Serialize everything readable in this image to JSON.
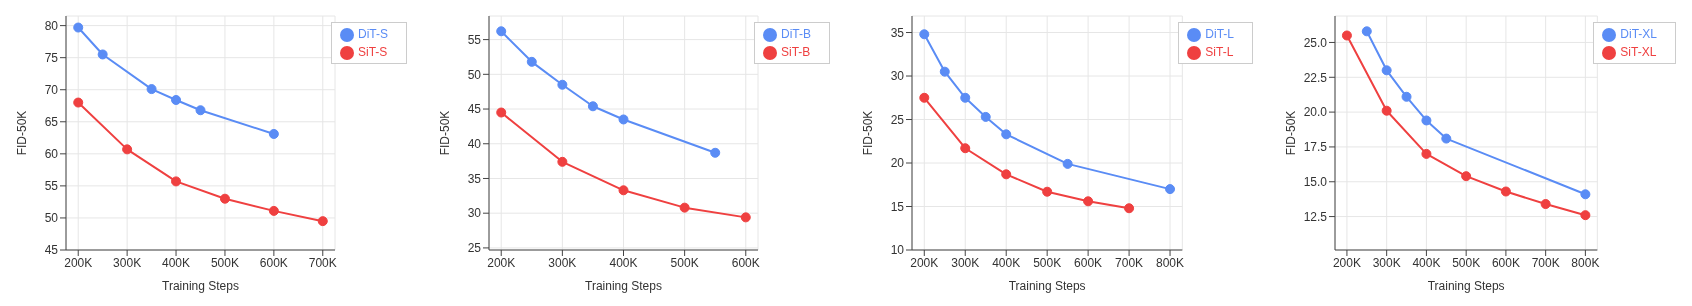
{
  "chart_data": [
    {
      "type": "line",
      "xlabel": "Training Steps",
      "ylabel": "FID-50K",
      "xlim": [
        175000,
        725000
      ],
      "ylim": [
        45,
        81.5
      ],
      "xticks": [
        {
          "value": 200000,
          "label": "200K"
        },
        {
          "value": 300000,
          "label": "300K"
        },
        {
          "value": 400000,
          "label": "400K"
        },
        {
          "value": 500000,
          "label": "500K"
        },
        {
          "value": 600000,
          "label": "600K"
        },
        {
          "value": 700000,
          "label": "700K"
        }
      ],
      "yticks": [
        45,
        50,
        55,
        60,
        65,
        70,
        75,
        80
      ],
      "grid": true,
      "legend": "top right",
      "marker": "circle",
      "line_style": "solid",
      "series": [
        {
          "name": "SiT-S",
          "color": "#ef4040",
          "x": [
            200000,
            300000,
            400000,
            500000,
            600000,
            700000
          ],
          "values": [
            68.0,
            60.7,
            55.7,
            53.0,
            51.1,
            49.5
          ]
        },
        {
          "name": "DiT-S",
          "color": "#5a8cf5",
          "x": [
            200000,
            250000,
            350000,
            400000,
            450000,
            600000
          ],
          "values": [
            79.7,
            75.5,
            70.1,
            68.4,
            66.8,
            63.1
          ]
        }
      ]
    },
    {
      "type": "line",
      "xlabel": "Training Steps",
      "ylabel": "FID-50K",
      "xlim": [
        180000,
        620000
      ],
      "ylim": [
        24.7,
        58.4
      ],
      "xticks": [
        {
          "value": 200000,
          "label": "200K"
        },
        {
          "value": 300000,
          "label": "300K"
        },
        {
          "value": 400000,
          "label": "400K"
        },
        {
          "value": 500000,
          "label": "500K"
        },
        {
          "value": 600000,
          "label": "600K"
        }
      ],
      "yticks": [
        25,
        30,
        35,
        40,
        45,
        50,
        55
      ],
      "grid": true,
      "legend": "top right",
      "marker": "circle",
      "line_style": "solid",
      "series": [
        {
          "name": "SiT-B",
          "color": "#ef4040",
          "x": [
            200000,
            300000,
            400000,
            500000,
            600000
          ],
          "values": [
            44.5,
            37.4,
            33.3,
            30.8,
            29.4
          ]
        },
        {
          "name": "DiT-B",
          "color": "#5a8cf5",
          "x": [
            200000,
            250000,
            300000,
            350000,
            400000,
            550000
          ],
          "values": [
            56.2,
            51.8,
            48.5,
            45.4,
            43.5,
            38.7
          ]
        }
      ]
    },
    {
      "type": "line",
      "xlabel": "Training Steps",
      "ylabel": "FID-50K",
      "xlim": [
        170000,
        830000
      ],
      "ylim": [
        10,
        36.9
      ],
      "xticks": [
        {
          "value": 200000,
          "label": "200K"
        },
        {
          "value": 300000,
          "label": "300K"
        },
        {
          "value": 400000,
          "label": "400K"
        },
        {
          "value": 500000,
          "label": "500K"
        },
        {
          "value": 600000,
          "label": "600K"
        },
        {
          "value": 700000,
          "label": "700K"
        },
        {
          "value": 800000,
          "label": "800K"
        }
      ],
      "yticks": [
        10,
        15,
        20,
        25,
        30,
        35
      ],
      "grid": true,
      "legend": "top right",
      "marker": "circle",
      "line_style": "solid",
      "series": [
        {
          "name": "SiT-L",
          "color": "#ef4040",
          "x": [
            200000,
            300000,
            400000,
            500000,
            600000,
            700000
          ],
          "values": [
            27.5,
            21.7,
            18.7,
            16.7,
            15.6,
            14.8
          ]
        },
        {
          "name": "DiT-L",
          "color": "#5a8cf5",
          "x": [
            200000,
            250000,
            300000,
            350000,
            400000,
            550000,
            800000
          ],
          "values": [
            34.8,
            30.5,
            27.5,
            25.3,
            23.3,
            19.9,
            17.0
          ]
        }
      ]
    },
    {
      "type": "line",
      "xlabel": "Training Steps",
      "ylabel": "FID-50K",
      "xlim": [
        170000,
        830000
      ],
      "ylim": [
        10.1,
        26.9
      ],
      "xticks": [
        {
          "value": 200000,
          "label": "200K"
        },
        {
          "value": 300000,
          "label": "300K"
        },
        {
          "value": 400000,
          "label": "400K"
        },
        {
          "value": 500000,
          "label": "500K"
        },
        {
          "value": 600000,
          "label": "600K"
        },
        {
          "value": 700000,
          "label": "700K"
        },
        {
          "value": 800000,
          "label": "800K"
        }
      ],
      "yticks": [
        {
          "value": 12.5,
          "label": "12.5"
        },
        {
          "value": 15,
          "label": "15.0"
        },
        {
          "value": 17.5,
          "label": "17.5"
        },
        {
          "value": 20,
          "label": "20.0"
        },
        {
          "value": 22.5,
          "label": "22.5"
        },
        {
          "value": 25,
          "label": "25.0"
        }
      ],
      "grid": true,
      "legend": "top right",
      "marker": "circle",
      "line_style": "solid",
      "series": [
        {
          "name": "SiT-XL",
          "color": "#ef4040",
          "x": [
            200000,
            300000,
            400000,
            500000,
            600000,
            700000,
            800000
          ],
          "values": [
            25.5,
            20.1,
            17.0,
            15.4,
            14.3,
            13.4,
            12.6
          ]
        },
        {
          "name": "DiT-XL",
          "color": "#5a8cf5",
          "x": [
            250000,
            300000,
            350000,
            400000,
            450000,
            800000
          ],
          "values": [
            25.8,
            23.0,
            21.1,
            19.4,
            18.1,
            14.1
          ]
        }
      ]
    }
  ]
}
